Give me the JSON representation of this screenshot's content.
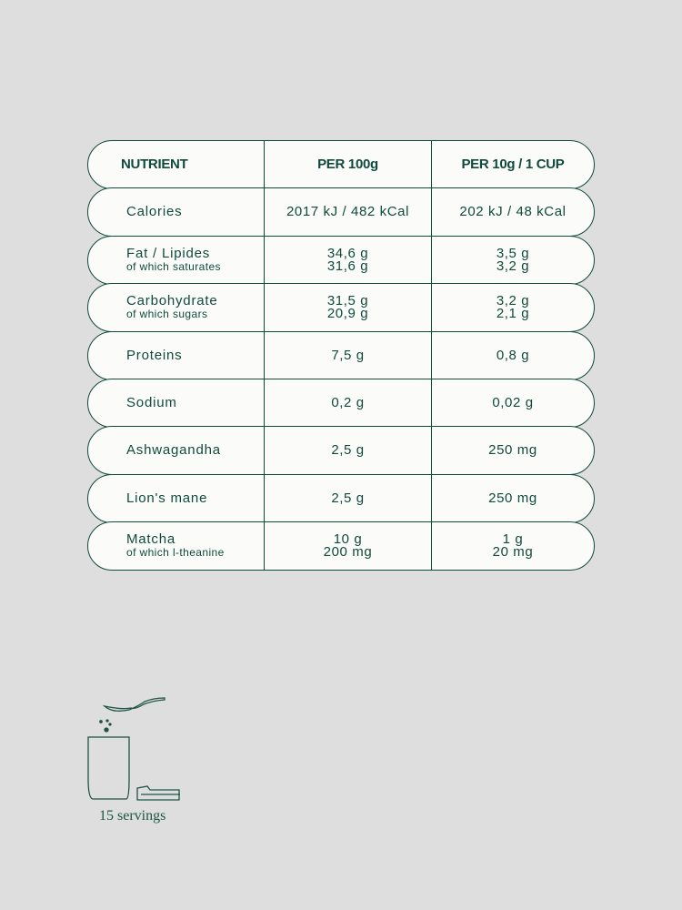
{
  "colors": {
    "accent": "#0f4a3c",
    "background": "#dedede",
    "row_fill": "#fbfbfa"
  },
  "header": {
    "nutrient": "NUTRIENT",
    "per100": "PER 100g",
    "perCup": "PER 10g / 1 CUP"
  },
  "rows": [
    {
      "name": "Calories",
      "sub": "",
      "v1": "2017 kJ / 482 kCal",
      "v1b": "",
      "v2": "202 kJ / 48 kCal",
      "v2b": ""
    },
    {
      "name": "Fat / Lipides",
      "sub": "of which saturates",
      "v1": "34,6 g",
      "v1b": "31,6 g",
      "v2": "3,5 g",
      "v2b": "3,2 g"
    },
    {
      "name": "Carbohydrate",
      "sub": "of which sugars",
      "v1": "31,5 g",
      "v1b": "20,9 g",
      "v2": "3,2 g",
      "v2b": "2,1 g"
    },
    {
      "name": "Proteins",
      "sub": "",
      "v1": "7,5 g",
      "v1b": "",
      "v2": "0,8 g",
      "v2b": ""
    },
    {
      "name": "Sodium",
      "sub": "",
      "v1": "0,2 g",
      "v1b": "",
      "v2": "0,02 g",
      "v2b": ""
    },
    {
      "name": "Ashwagandha",
      "sub": "",
      "v1": "2,5 g",
      "v1b": "",
      "v2": "250 mg",
      "v2b": ""
    },
    {
      "name": "Lion's mane",
      "sub": "",
      "v1": "2,5 g",
      "v1b": "",
      "v2": "250 mg",
      "v2b": ""
    },
    {
      "name": "Matcha",
      "sub": "of which l-theanine",
      "v1": "10 g",
      "v1b": "200 mg",
      "v2": "1 g",
      "v2b": "20 mg"
    }
  ],
  "servings": {
    "label": "15 servings",
    "icon": "spoon-cup-pack-icon"
  }
}
